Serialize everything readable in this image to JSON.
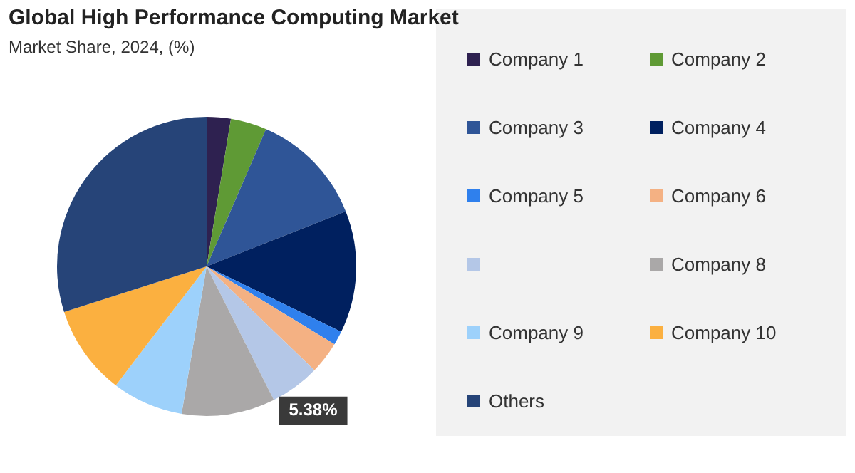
{
  "chart_data": {
    "type": "pie",
    "title": "Global High Performance Computing Market",
    "subtitle": "Market Share, 2024, (%)",
    "categories": [
      "Company 1",
      "Company 2",
      "Company 3",
      "Company 4",
      "Company 5",
      "Company 6",
      null,
      "Company 8",
      "Company 9",
      "Company 10",
      "Others"
    ],
    "values": [
      2.6,
      3.9,
      12.5,
      13.2,
      1.5,
      3.5,
      5.38,
      10.1,
      7.7,
      9.7,
      29.92
    ],
    "colors": [
      "#2e2150",
      "#5f9a35",
      "#2f5597",
      "#00205f",
      "#2f80ed",
      "#f4b183",
      "#b4c7e7",
      "#aaa8a8",
      "#9dd1fb",
      "#fbb040",
      "#264478"
    ],
    "value_labels": [
      null,
      null,
      null,
      null,
      null,
      null,
      "5.38%",
      null,
      null,
      null,
      null
    ],
    "legend": "right"
  }
}
